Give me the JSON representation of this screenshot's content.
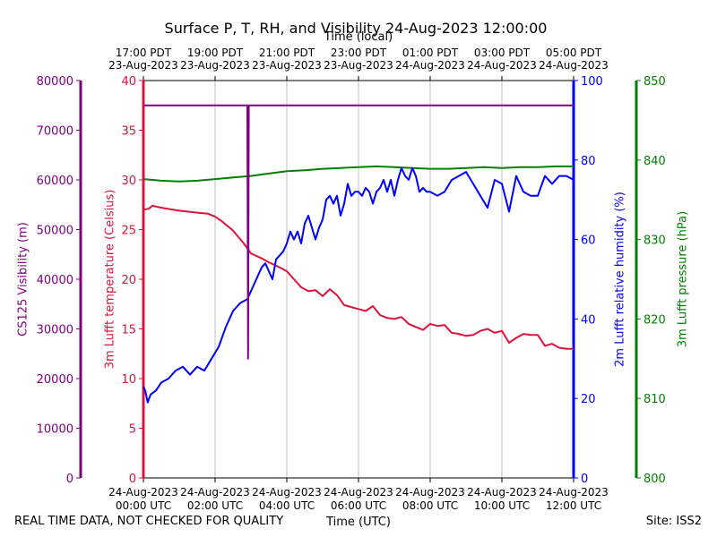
{
  "chart_data": {
    "type": "line",
    "title": "Surface P, T, RH, and Visibility 24-Aug-2023 12:00:00",
    "top_axis_label": "Time (local)",
    "xlabel": "Time (UTC)",
    "x_ticks_utc": [
      {
        "date": "24-Aug-2023",
        "time": "00:00 UTC"
      },
      {
        "date": "24-Aug-2023",
        "time": "02:00 UTC"
      },
      {
        "date": "24-Aug-2023",
        "time": "04:00 UTC"
      },
      {
        "date": "24-Aug-2023",
        "time": "06:00 UTC"
      },
      {
        "date": "24-Aug-2023",
        "time": "08:00 UTC"
      },
      {
        "date": "24-Aug-2023",
        "time": "10:00 UTC"
      },
      {
        "date": "24-Aug-2023",
        "time": "12:00 UTC"
      }
    ],
    "x_ticks_local": [
      {
        "time": "17:00 PDT",
        "date": "23-Aug-2023"
      },
      {
        "time": "19:00 PDT",
        "date": "23-Aug-2023"
      },
      {
        "time": "21:00 PDT",
        "date": "23-Aug-2023"
      },
      {
        "time": "23:00 PDT",
        "date": "23-Aug-2023"
      },
      {
        "time": "01:00 PDT",
        "date": "24-Aug-2023"
      },
      {
        "time": "03:00 PDT",
        "date": "24-Aug-2023"
      },
      {
        "time": "05:00 PDT",
        "date": "24-Aug-2023"
      }
    ],
    "xlim_hours_utc": [
      0,
      12
    ],
    "grid": "vertical",
    "footer_left": "REAL TIME DATA, NOT CHECKED FOR QUALITY",
    "footer_right": "Site: ISS2",
    "axes": {
      "visibility": {
        "label": "CS125 Visibility (m)",
        "ylim": [
          0,
          80000
        ],
        "ticks": [
          "0",
          "10000",
          "20000",
          "30000",
          "40000",
          "50000",
          "60000",
          "70000",
          "80000"
        ],
        "color": "#800080"
      },
      "temperature": {
        "label": "3m Lufft temperature (Celsius)",
        "ylim": [
          0,
          40
        ],
        "ticks": [
          "0",
          "5",
          "10",
          "15",
          "20",
          "25",
          "30",
          "35",
          "40"
        ],
        "color": "#dc143c"
      },
      "humidity": {
        "label": "2m Lufft relative humidity (%)",
        "ylim": [
          0,
          100
        ],
        "ticks": [
          "0",
          "20",
          "40",
          "60",
          "80",
          "100"
        ],
        "color": "#0000ff"
      },
      "pressure": {
        "label": "3m Lufft pressure (hPa)",
        "ylim": [
          800,
          850
        ],
        "ticks": [
          "800",
          "810",
          "820",
          "830",
          "840",
          "850"
        ],
        "color": "#008000"
      }
    },
    "series": [
      {
        "axis": "visibility",
        "color": "#800080",
        "x": [
          0,
          2.9,
          2.92,
          2.94,
          2.96,
          12
        ],
        "y": [
          75000,
          75000,
          24000,
          75000,
          75000,
          75000
        ]
      },
      {
        "axis": "temperature",
        "color": "#dc143c",
        "x": [
          0,
          0.15,
          0.25,
          0.5,
          1.0,
          1.5,
          1.8,
          2.0,
          2.2,
          2.5,
          2.8,
          3.0,
          3.3,
          3.5,
          3.8,
          4.0,
          4.2,
          4.4,
          4.6,
          4.8,
          5.0,
          5.2,
          5.4,
          5.6,
          5.8,
          6.0,
          6.2,
          6.4,
          6.6,
          6.8,
          7.0,
          7.2,
          7.4,
          7.6,
          7.8,
          8.0,
          8.2,
          8.4,
          8.6,
          8.8,
          9.0,
          9.2,
          9.4,
          9.6,
          9.8,
          10.0,
          10.2,
          10.4,
          10.6,
          10.8,
          11.0,
          11.2,
          11.4,
          11.6,
          11.8,
          12.0
        ],
        "y": [
          27.0,
          27.1,
          27.4,
          27.2,
          26.9,
          26.7,
          26.6,
          26.3,
          25.8,
          24.9,
          23.6,
          22.6,
          22.1,
          21.7,
          21.2,
          20.8,
          20.0,
          19.2,
          18.8,
          18.9,
          18.3,
          19.0,
          18.4,
          17.4,
          17.2,
          17.0,
          16.8,
          17.3,
          16.4,
          16.1,
          16.0,
          16.2,
          15.5,
          15.2,
          14.9,
          15.5,
          15.3,
          15.4,
          14.6,
          14.5,
          14.3,
          14.4,
          14.8,
          15.0,
          14.6,
          14.8,
          13.6,
          14.1,
          14.5,
          14.4,
          14.4,
          13.3,
          13.5,
          13.1,
          13.0,
          13.0
        ]
      },
      {
        "axis": "humidity",
        "color": "#0000ff",
        "x": [
          0,
          0.05,
          0.12,
          0.2,
          0.35,
          0.5,
          0.7,
          0.9,
          1.1,
          1.3,
          1.5,
          1.7,
          1.9,
          2.1,
          2.3,
          2.5,
          2.7,
          2.9,
          3.0,
          3.15,
          3.3,
          3.4,
          3.5,
          3.6,
          3.7,
          3.8,
          3.9,
          4.0,
          4.1,
          4.2,
          4.3,
          4.4,
          4.5,
          4.6,
          4.7,
          4.8,
          4.9,
          5.0,
          5.1,
          5.2,
          5.3,
          5.4,
          5.5,
          5.6,
          5.7,
          5.8,
          5.9,
          6.0,
          6.1,
          6.2,
          6.3,
          6.4,
          6.5,
          6.6,
          6.7,
          6.8,
          6.9,
          7.0,
          7.1,
          7.2,
          7.3,
          7.4,
          7.5,
          7.6,
          7.7,
          7.8,
          7.9,
          8.0,
          8.2,
          8.4,
          8.6,
          8.8,
          9.0,
          9.2,
          9.4,
          9.6,
          9.8,
          10.0,
          10.2,
          10.4,
          10.6,
          10.8,
          11.0,
          11.2,
          11.4,
          11.6,
          11.8,
          12.0
        ],
        "y": [
          23,
          22,
          19,
          21,
          22,
          24,
          25,
          27,
          28,
          26,
          28,
          27,
          30,
          33,
          38,
          42,
          44,
          45,
          47,
          50,
          53,
          54,
          52,
          50,
          55,
          56,
          57,
          59,
          62,
          60,
          62,
          59,
          64,
          66,
          63,
          60,
          63,
          65,
          70,
          71,
          69,
          71,
          66,
          69,
          74,
          71,
          72,
          72,
          71,
          73,
          72,
          69,
          72,
          73,
          75,
          72,
          75,
          71,
          75,
          78,
          76,
          75,
          78,
          76,
          72,
          73,
          72,
          72,
          71,
          72,
          75,
          76,
          77,
          74,
          71,
          68,
          75,
          74,
          67,
          76,
          72,
          71,
          71,
          76,
          74,
          76,
          76,
          75
        ]
      },
      {
        "axis": "pressure",
        "color": "#008000",
        "x": [
          0,
          0.5,
          1.0,
          1.5,
          2.0,
          2.5,
          3.0,
          3.5,
          4.0,
          4.5,
          5.0,
          5.5,
          6.0,
          6.5,
          7.0,
          7.5,
          8.0,
          8.5,
          9.0,
          9.5,
          10.0,
          10.5,
          11.0,
          11.5,
          12.0
        ],
        "y": [
          837.6,
          837.4,
          837.3,
          837.4,
          837.6,
          837.8,
          838.0,
          838.3,
          838.6,
          838.7,
          838.9,
          839.0,
          839.1,
          839.2,
          839.1,
          839.0,
          838.9,
          838.9,
          839.0,
          839.1,
          839.0,
          839.1,
          839.1,
          839.2,
          839.2
        ]
      }
    ]
  }
}
